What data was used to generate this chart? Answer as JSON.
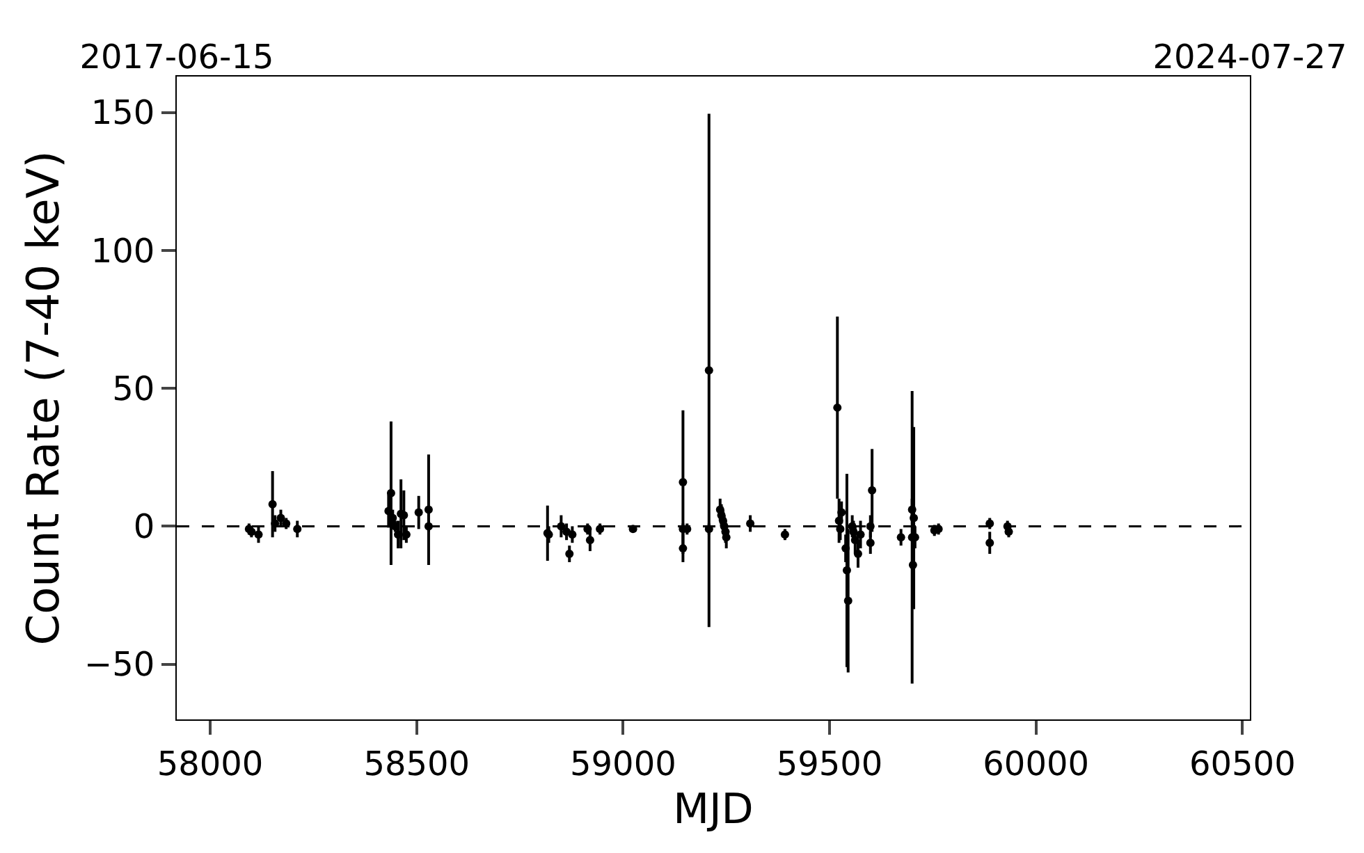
{
  "chart_data": {
    "type": "scatter",
    "xlabel": "MJD",
    "ylabel": "Count Rate (7-40 keV)",
    "x": [
      58094,
      58100,
      58117,
      58151,
      58157,
      58171,
      58184,
      58211,
      58432,
      58438,
      58442,
      58448,
      58455,
      58462,
      58469,
      58475,
      58505,
      58529,
      58529,
      58817,
      58820,
      58850,
      58863,
      58870,
      58877,
      58914,
      58920,
      58944,
      59024,
      59145,
      59145,
      59145,
      59155,
      59208,
      59208,
      59235,
      59238,
      59242,
      59245,
      59248,
      59250,
      59308,
      59392,
      59519,
      59523,
      59526,
      59529,
      59539,
      59542,
      59545,
      59555,
      59558,
      59562,
      59569,
      59575,
      59599,
      59603,
      59599,
      59673,
      59700,
      59700,
      59702,
      59704,
      59707,
      59754,
      59764,
      59888,
      59888,
      59931,
      59934
    ],
    "series": [
      {
        "color": "#000000",
        "values": [
          -1,
          -2,
          -3,
          8,
          1,
          3,
          1,
          -1,
          5.5,
          12,
          3,
          0,
          -3,
          4.5,
          4,
          -3,
          5,
          6,
          0,
          -2.5,
          -3,
          0,
          -2,
          -10,
          -3,
          -1,
          -5,
          -1,
          -1,
          16,
          -1,
          -8,
          -1,
          56.5,
          -1,
          6,
          4,
          2,
          0,
          -2,
          -4,
          1,
          -3,
          43,
          2,
          -1,
          5,
          -8,
          -16,
          -27,
          0,
          -2,
          -5,
          -10,
          -3,
          0,
          13,
          -6,
          -4,
          -4,
          6,
          -14,
          3,
          -4,
          -1.5,
          -1,
          1,
          -6,
          0,
          -2
        ],
        "errors": [
          2,
          2,
          3,
          12,
          3,
          3,
          2,
          3,
          6,
          26,
          3,
          2,
          5,
          12.5,
          9,
          3,
          6,
          20,
          2,
          10,
          3,
          4,
          3,
          3,
          3,
          2,
          4,
          2,
          1,
          26,
          2,
          5,
          2,
          93,
          2,
          4,
          4,
          4,
          4,
          4,
          4,
          3,
          2,
          33,
          8,
          4,
          4,
          5,
          35,
          26,
          4,
          4,
          5,
          5,
          5,
          4,
          15,
          4,
          3,
          53,
          4,
          10,
          33,
          4,
          2,
          2,
          2,
          4,
          2,
          2
        ]
      }
    ],
    "xlim": [
      57919,
      60518
    ],
    "xticks": [
      58000,
      58500,
      59000,
      59500,
      60000,
      60500
    ],
    "ylim": [
      -70,
      163
    ],
    "yticks": [
      {
        "value": -50,
        "label": "−50"
      },
      0,
      50,
      100,
      150
    ],
    "x2lim": [
      "2017-06-15",
      "2024-07-27"
    ],
    "x2ticks": [
      "2017-06-15",
      "2024-07-27"
    ],
    "ref_lines": [
      {
        "axis": "y",
        "value": 0,
        "color": "#000000",
        "line_style": "dashed"
      }
    ],
    "marker": "circle"
  }
}
